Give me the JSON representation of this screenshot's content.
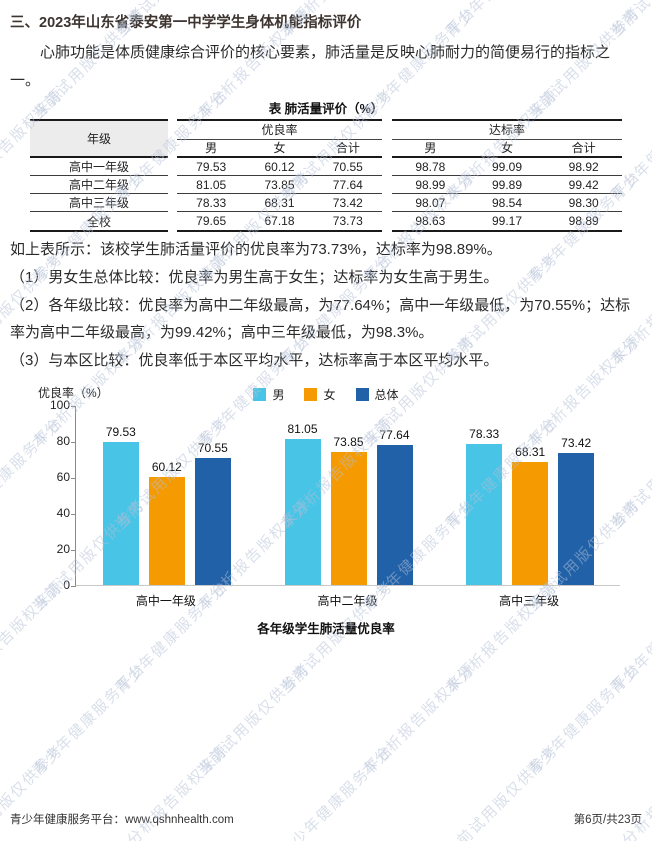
{
  "page": {
    "title": "三、2023年山东省泰安第一中学学生身体机能指标评价",
    "intro": "心肺功能是体质健康综合评价的核心要素，肺活量是反映心肺耐力的简便易行的指标之一。"
  },
  "table": {
    "title": "表 肺活量评价（%）",
    "row_header": "年级",
    "groups": [
      {
        "label": "优良率",
        "cols": [
          "男",
          "女",
          "合计"
        ]
      },
      {
        "label": "达标率",
        "cols": [
          "男",
          "女",
          "合计"
        ]
      }
    ],
    "rows": [
      {
        "grade": "高中一年级",
        "values": [
          [
            "79.53",
            "60.12",
            "70.55"
          ],
          [
            "98.78",
            "99.09",
            "98.92"
          ]
        ]
      },
      {
        "grade": "高中二年级",
        "values": [
          [
            "81.05",
            "73.85",
            "77.64"
          ],
          [
            "98.99",
            "99.89",
            "99.42"
          ]
        ]
      },
      {
        "grade": "高中三年级",
        "values": [
          [
            "78.33",
            "68.31",
            "73.42"
          ],
          [
            "98.07",
            "98.54",
            "98.30"
          ]
        ]
      },
      {
        "grade": "全校",
        "values": [
          [
            "79.65",
            "67.18",
            "73.73"
          ],
          [
            "98.63",
            "99.17",
            "98.89"
          ]
        ]
      }
    ]
  },
  "analysis": {
    "summary": "如上表所示：该校学生肺活量评价的优良率为73.73%，达标率为98.89%。",
    "points": [
      "（1）男女生总体比较：优良率为男生高于女生；达标率为女生高于男生。",
      "（2）各年级比较：优良率为高中二年级最高，为77.64%；高中一年级最低，为70.55%；达标率为高中二年级最高，为99.42%；高中三年级最低，为98.3%。",
      "（3）与本区比较：优良率低于本区平均水平，达标率高于本区平均水平。"
    ]
  },
  "chart_data": {
    "type": "bar",
    "title": "各年级学生肺活量优良率",
    "ylabel": "优良率（%）",
    "categories": [
      "高中一年级",
      "高中二年级",
      "高中三年级"
    ],
    "series": [
      {
        "name": "男",
        "color": "#48c4e6",
        "values": [
          79.53,
          81.05,
          78.33
        ]
      },
      {
        "name": "女",
        "color": "#f59a00",
        "values": [
          60.12,
          73.85,
          68.31
        ]
      },
      {
        "name": "总体",
        "color": "#2061a8",
        "values": [
          70.55,
          77.64,
          73.42
        ]
      }
    ],
    "ylim": [
      0,
      100
    ],
    "yticks": [
      0,
      20,
      40,
      60,
      80,
      100
    ],
    "grid": false,
    "legend_position": "top"
  },
  "watermark": {
    "phrases": [
      "青少年健康服务平台",
      "当前试用版仅供参考",
      "本分析报告版权来源"
    ],
    "color": "#b4c0d6"
  },
  "footer": {
    "left": "青少年健康服务平台：www.qshnhealth.com",
    "right": "第6页/共23页"
  }
}
